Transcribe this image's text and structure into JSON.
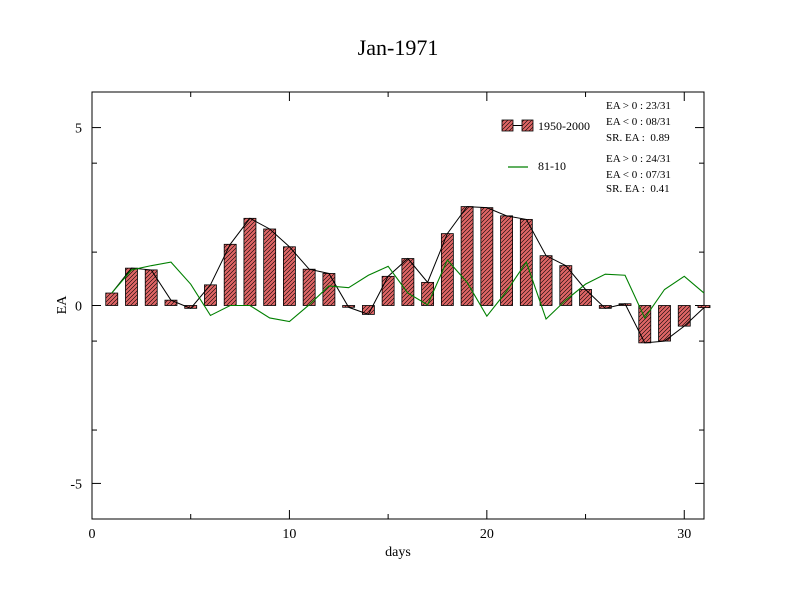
{
  "chart_data": {
    "type": "bar",
    "title": "Jan-1971",
    "xlabel": "days",
    "ylabel": "EA",
    "xlim": [
      0,
      31
    ],
    "ylim": [
      -6,
      6
    ],
    "x_ticks": [
      0,
      10,
      20,
      30
    ],
    "y_ticks": [
      -5,
      0,
      5
    ],
    "grid": false,
    "legend_position": "top-right",
    "colors": {
      "bar_fill": "#e06666",
      "bar_hatch": "#000000",
      "bar_line": "#000000",
      "line_81_10": "#008000"
    },
    "series": [
      {
        "name": "1950-2000",
        "kind": "bar",
        "x": [
          1,
          2,
          3,
          4,
          5,
          6,
          7,
          8,
          9,
          10,
          11,
          12,
          13,
          14,
          15,
          16,
          17,
          18,
          19,
          20,
          21,
          22,
          23,
          24,
          25,
          26,
          27,
          28,
          29,
          30,
          31
        ],
        "values": [
          0.35,
          1.05,
          1.0,
          0.15,
          -0.08,
          0.58,
          1.72,
          2.45,
          2.15,
          1.65,
          1.02,
          0.9,
          -0.05,
          -0.25,
          0.82,
          1.32,
          0.65,
          2.02,
          2.78,
          2.75,
          2.52,
          2.42,
          1.4,
          1.12,
          0.45,
          -0.08,
          0.05,
          -1.05,
          -1.0,
          -0.58,
          -0.06
        ]
      },
      {
        "name": "81-10",
        "kind": "line",
        "x": [
          1,
          2,
          3,
          4,
          5,
          6,
          7,
          8,
          9,
          10,
          11,
          12,
          13,
          14,
          15,
          16,
          17,
          18,
          19,
          20,
          21,
          22,
          23,
          24,
          25,
          26,
          27,
          28,
          29,
          30,
          31
        ],
        "values": [
          0.35,
          1.0,
          1.12,
          1.22,
          0.6,
          -0.28,
          0.0,
          0.0,
          -0.35,
          -0.45,
          0.02,
          0.55,
          0.5,
          0.85,
          1.1,
          0.35,
          0.02,
          1.28,
          0.65,
          -0.3,
          0.4,
          1.22,
          -0.38,
          0.15,
          0.6,
          0.88,
          0.85,
          -0.35,
          0.45,
          0.82,
          0.35
        ]
      }
    ],
    "legend": {
      "bar_label": "1950-2000",
      "line_label": "81-10",
      "stats_1950": [
        "EA > 0 : 23/31",
        "EA < 0 : 08/31",
        "SR. EA :  0.89"
      ],
      "stats_8110": [
        "EA > 0 : 24/31",
        "EA < 0 : 07/31",
        "SR. EA :  0.41"
      ]
    }
  }
}
